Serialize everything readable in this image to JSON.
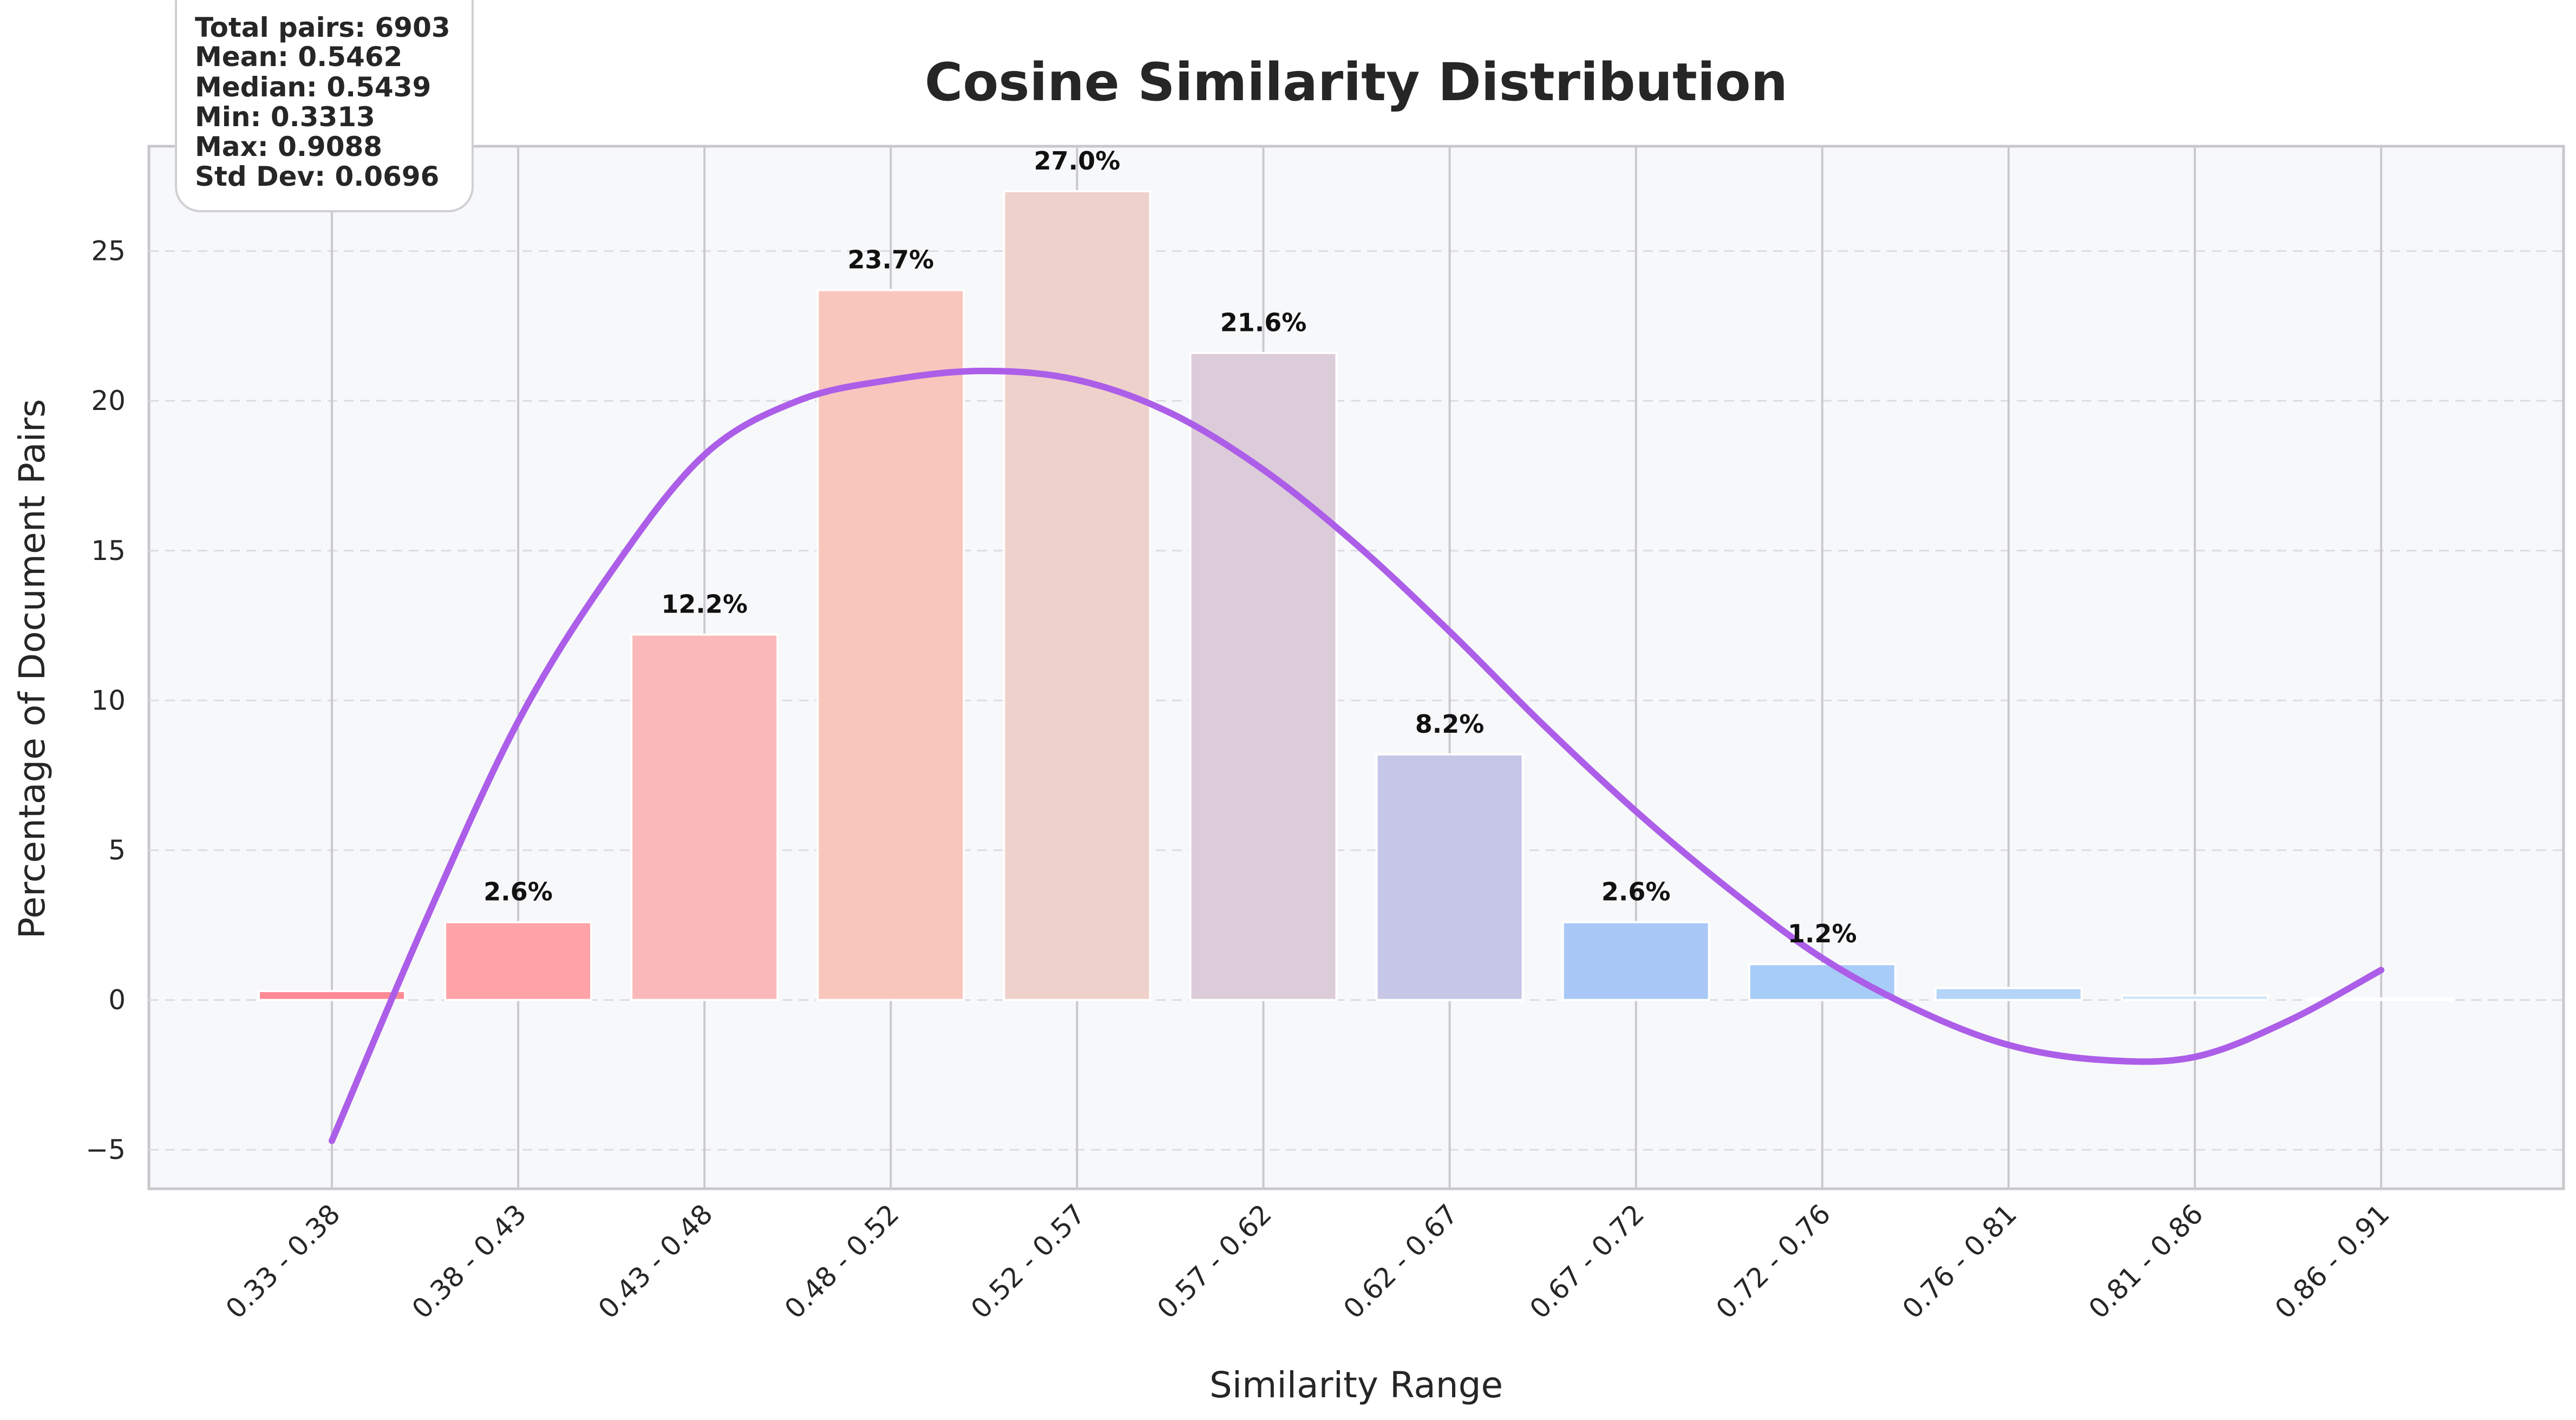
{
  "chart_data": {
    "type": "bar",
    "title": "Cosine Similarity Distribution",
    "xlabel": "Similarity Range",
    "ylabel": "Percentage of Document Pairs",
    "categories": [
      "0.33 - 0.38",
      "0.38 - 0.43",
      "0.43 - 0.48",
      "0.48 - 0.52",
      "0.52 - 0.57",
      "0.57 - 0.62",
      "0.62 - 0.67",
      "0.67 - 0.72",
      "0.72 - 0.76",
      "0.76 - 0.81",
      "0.81 - 0.86",
      "0.86 - 0.91"
    ],
    "values": [
      0.3,
      2.6,
      12.2,
      23.7,
      27.0,
      21.6,
      8.2,
      2.6,
      1.2,
      0.4,
      0.15,
      0.05
    ],
    "data_labels": [
      "",
      "2.6%",
      "12.2%",
      "23.7%",
      "27.0%",
      "21.6%",
      "8.2%",
      "2.6%",
      "1.2%",
      "",
      "",
      ""
    ],
    "bar_colors": [
      "#ff8a96",
      "#ffa3a8",
      "#fbb8b8",
      "#f9c6bd",
      "#efd1cb",
      "#dccbd9",
      "#c6c7e6",
      "#aac8f7",
      "#a8ccf8",
      "#b4d5f8",
      "#cfe4f8",
      "#eef5fd"
    ],
    "curve": {
      "name": "polynomial fit",
      "color": "#ac5ee8",
      "x_index": [
        0,
        0.5,
        1,
        1.5,
        2,
        2.5,
        3,
        3.5,
        4,
        4.5,
        5,
        5.5,
        6,
        6.5,
        7,
        7.5,
        8,
        8.5,
        9,
        9.5,
        10,
        10.5,
        11
      ],
      "y": [
        -4.7,
        2.6,
        9.3,
        14.3,
        18.2,
        20.0,
        20.7,
        21.0,
        20.7,
        19.6,
        17.7,
        15.2,
        12.3,
        9.2,
        6.3,
        3.7,
        1.4,
        -0.3,
        -1.5,
        -2.0,
        -1.9,
        -0.7,
        1.0
      ]
    },
    "ylim": [
      -6.3,
      28.5
    ],
    "yticks": [
      -5,
      0,
      5,
      10,
      15,
      20,
      25
    ],
    "grid": true,
    "legend": "none"
  },
  "stats_box": {
    "lines": [
      "Total pairs: 6903",
      "Mean: 0.5462",
      "Median: 0.5439",
      "Min: 0.3313",
      "Max: 0.9088",
      "Std Dev: 0.0696"
    ]
  },
  "colors": {
    "plot_background": "#f7f8fa",
    "grid": "#d9d9de",
    "curve": "#ac5ee8"
  }
}
